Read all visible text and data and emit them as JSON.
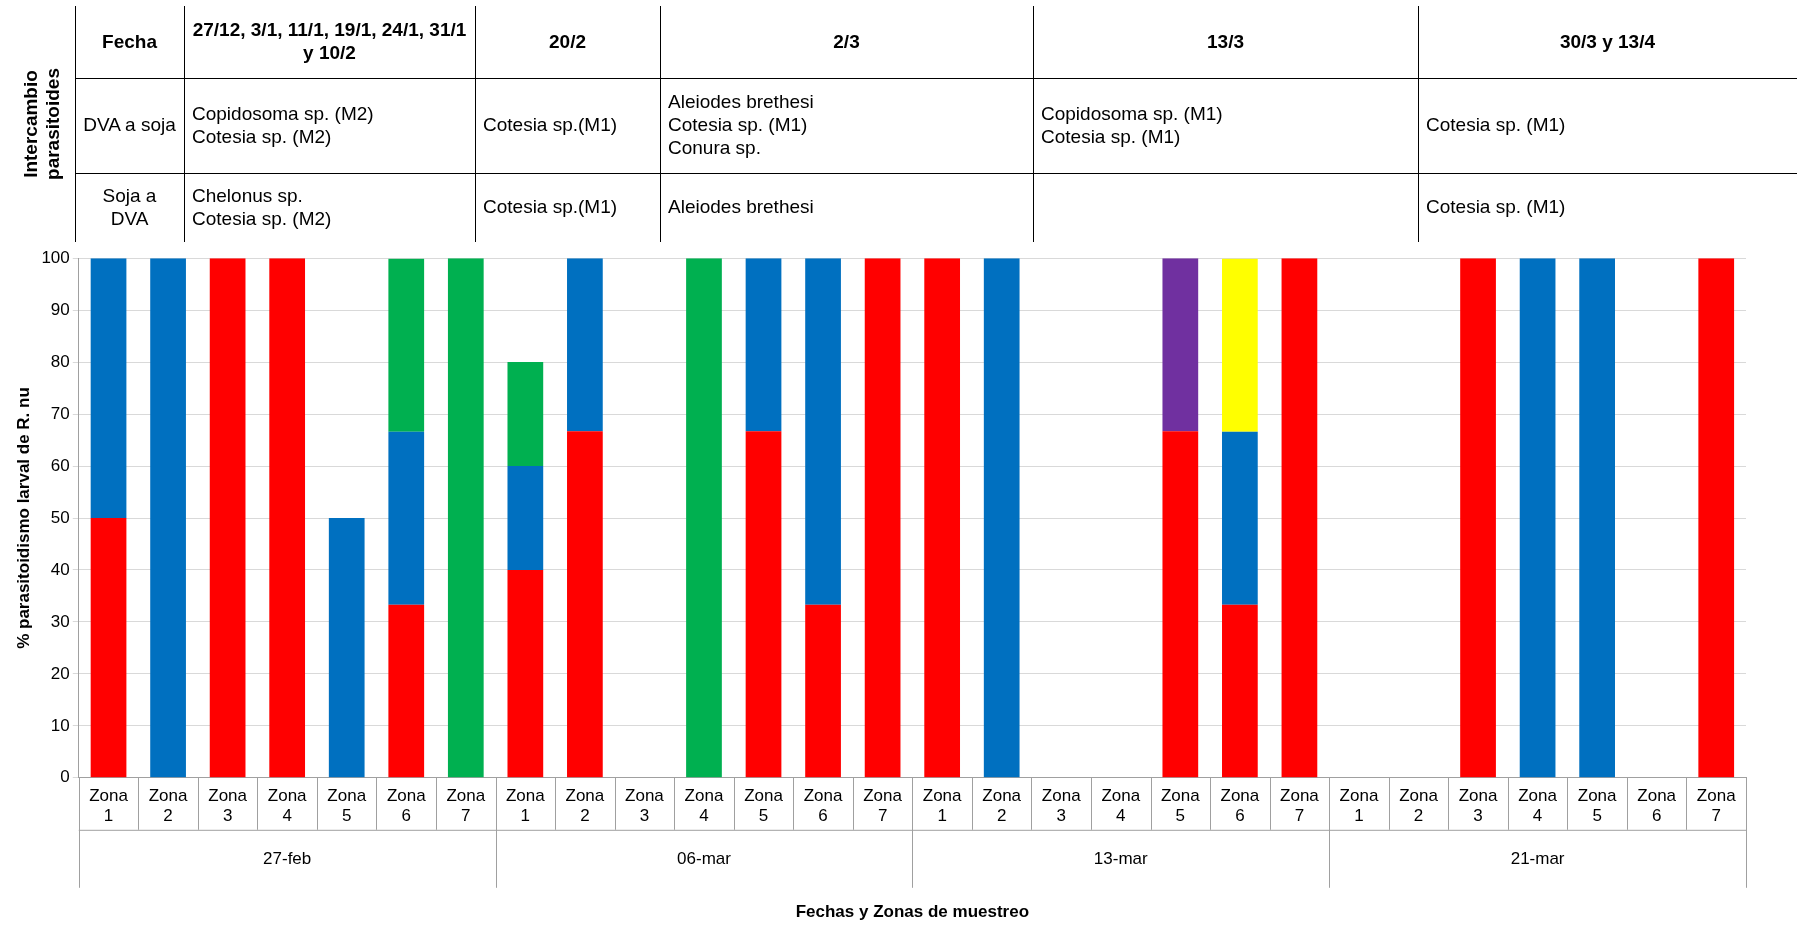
{
  "chart_data": {
    "type": "bar",
    "stacked": true,
    "ylabel": "% parasitoidismo larval de R. nu",
    "xlabel": "Fechas y Zonas de muestreo",
    "categories": [
      "Zona 1",
      "Zona 2",
      "Zona 3",
      "Zona 4",
      "Zona 5",
      "Zona 6",
      "Zona 7",
      "Zona 1",
      "Zona 2",
      "Zona 3",
      "Zona 4",
      "Zona 5",
      "Zona 6",
      "Zona 7",
      "Zona 1",
      "Zona 2",
      "Zona 3",
      "Zona 4",
      "Zona 5",
      "Zona 6",
      "Zona 7",
      "Zona 1",
      "Zona 2",
      "Zona 3",
      "Zona 4",
      "Zona 5",
      "Zona 6",
      "Zona 7"
    ],
    "series": [
      {
        "color": "#ff0000",
        "values": [
          50,
          null,
          100,
          100,
          null,
          33.3,
          null,
          40,
          66.7,
          null,
          null,
          66.7,
          33.3,
          100,
          100,
          null,
          null,
          null,
          66.7,
          33.3,
          100,
          null,
          null,
          100,
          null,
          null,
          null,
          100
        ]
      },
      {
        "color": "#0070c0",
        "values": [
          50,
          100,
          null,
          null,
          50,
          33.3,
          null,
          20,
          33.3,
          null,
          null,
          33.3,
          66.7,
          null,
          null,
          100,
          null,
          null,
          null,
          33.3,
          null,
          null,
          null,
          null,
          100,
          100,
          null,
          null
        ]
      },
      {
        "color": "#00b050",
        "values": [
          null,
          null,
          null,
          null,
          null,
          33.3,
          100,
          20,
          null,
          null,
          100,
          null,
          null,
          null,
          null,
          null,
          null,
          null,
          null,
          null,
          null,
          null,
          null,
          null,
          null,
          null,
          null,
          null
        ]
      },
      {
        "color": "#7030a0",
        "values": [
          null,
          null,
          null,
          null,
          null,
          null,
          null,
          null,
          null,
          null,
          null,
          null,
          null,
          null,
          null,
          null,
          null,
          null,
          33.3,
          null,
          null,
          null,
          null,
          null,
          null,
          null,
          null,
          null
        ]
      },
      {
        "color": "#ffff00",
        "values": [
          null,
          null,
          null,
          null,
          null,
          null,
          null,
          null,
          null,
          null,
          null,
          null,
          null,
          null,
          null,
          null,
          null,
          null,
          null,
          33.3,
          null,
          null,
          null,
          null,
          null,
          null,
          null,
          null
        ]
      }
    ],
    "ylim": [
      0,
      100
    ],
    "yticks": [
      0,
      10,
      20,
      30,
      40,
      50,
      60,
      70,
      80,
      90,
      100
    ],
    "grid": "y",
    "legend": false,
    "annotations": [
      "Intercambio parasitoides",
      "Fecha",
      "27/12, 3/1, 11/1, 19/1, 24/1, 31/1 y 10/2",
      "20/2",
      "2/3",
      "13/3",
      "30/3 y 13/4",
      "DVA a soja",
      "Copidosoma sp. (M2)\nCotesia sp. (M2)",
      "Cotesia sp.(M1)",
      "Aleiodes brethesi\nCotesia sp. (M1)\nConura sp.",
      "Copidosoma sp. (M1)\nCotesia sp. (M1)",
      "Cotesia sp. (M1)",
      "Soja a DVA",
      "Chelonus sp.\nCotesia sp. (M2)",
      "Cotesia sp.(M1)",
      "Aleiodes brethesi",
      "Cotesia sp. (M1)",
      "27-feb",
      "06-mar",
      "13-mar",
      "21-mar"
    ]
  }
}
